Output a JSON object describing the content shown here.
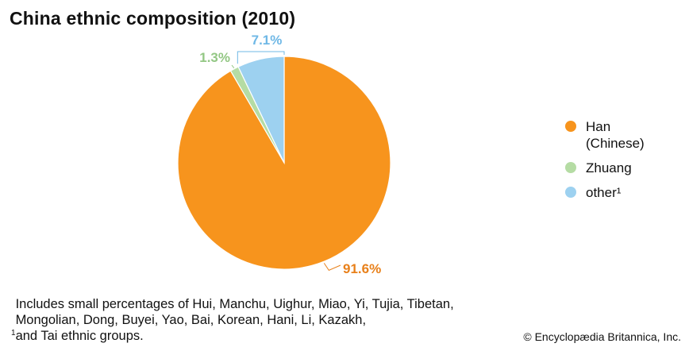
{
  "chart_data": {
    "type": "pie",
    "title": "China ethnic composition (2010)",
    "slices": [
      {
        "name": "Han (Chinese)",
        "label_lines": [
          "Han",
          "(Chinese)"
        ],
        "value": 91.6,
        "display": "91.6%",
        "color": "#F7941D"
      },
      {
        "name": "Zhuang",
        "label_lines": [
          "Zhuang"
        ],
        "value": 1.3,
        "display": "1.3%",
        "color": "#B5DCA4"
      },
      {
        "name": "other",
        "label_lines": [
          "other¹"
        ],
        "value": 7.1,
        "display": "7.1%",
        "color": "#9DD1F0"
      }
    ],
    "legend_position": "right"
  },
  "footnote": {
    "marker": "1",
    "text": "Includes small percentages of Hui, Manchu, Uighur, Miao, Yi, Tujia, Tibetan,\nMongolian, Dong, Buyei, Yao, Bai, Korean, Hani, Li, Kazakh,\nand Tai ethnic groups."
  },
  "credit": "© Encyclopædia Britannica, Inc."
}
